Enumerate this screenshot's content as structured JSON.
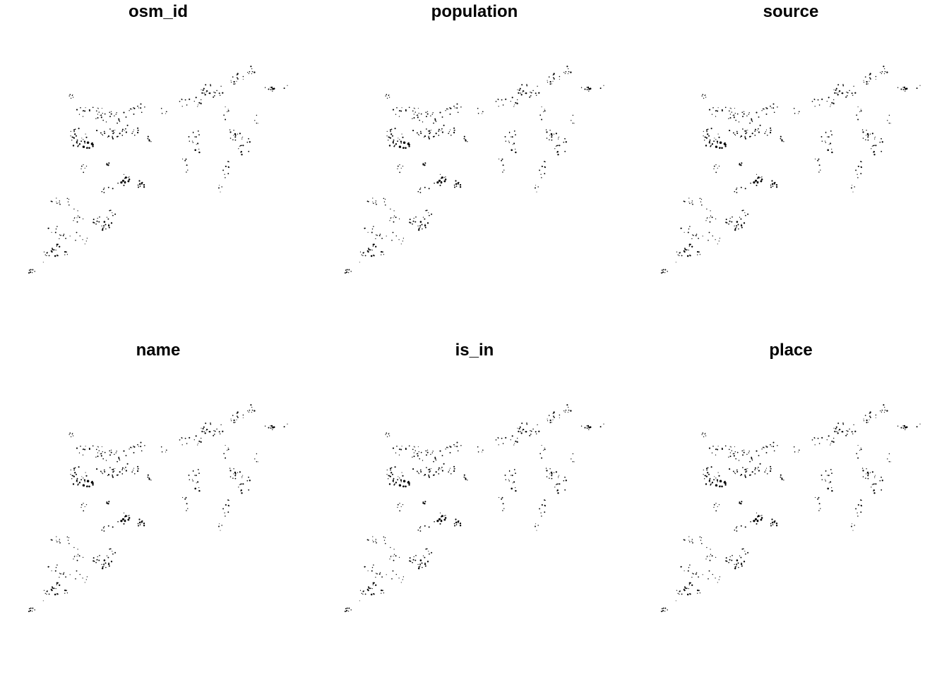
{
  "figure": {
    "panels": [
      {
        "title": "osm_id"
      },
      {
        "title": "population"
      },
      {
        "title": "source"
      },
      {
        "title": "name"
      },
      {
        "title": "is_in"
      },
      {
        "title": "place"
      }
    ]
  },
  "colors": {
    "background": "#ffffff",
    "points": "#000000",
    "title": "#000000"
  }
}
